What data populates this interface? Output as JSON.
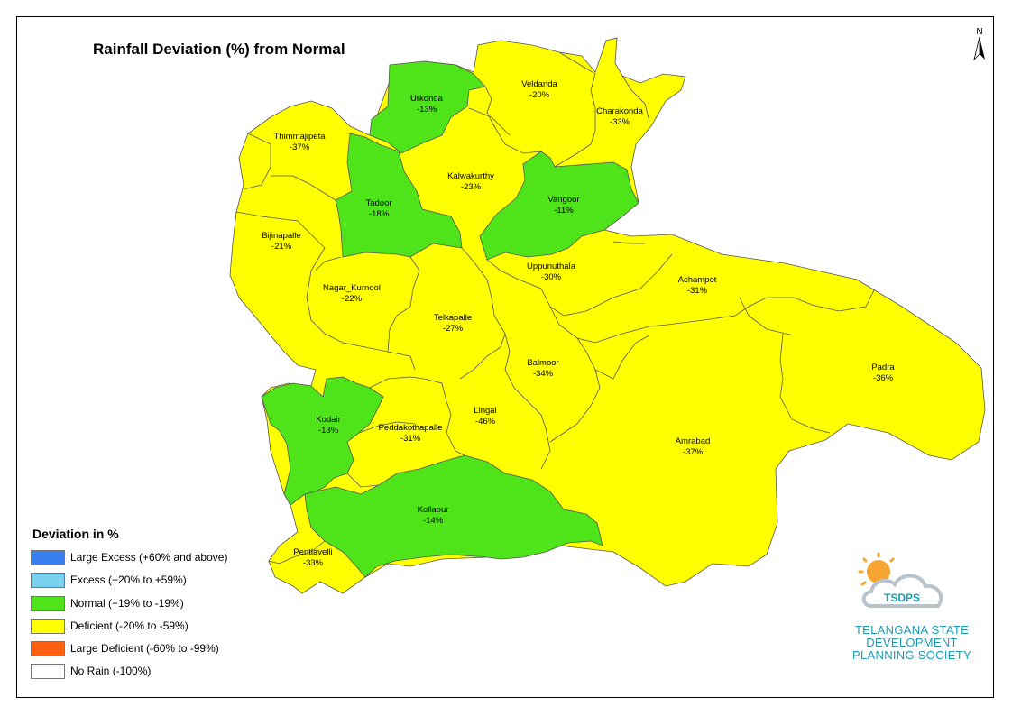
{
  "title": "Rainfall Deviation (%) from Normal",
  "north_arrow": "N",
  "legend": {
    "title": "Deviation in %",
    "items": [
      {
        "label": "Large Excess (+60% and above)",
        "color": "#3a7ff0"
      },
      {
        "label": "Excess (+20% to +59%)",
        "color": "#79d0ef"
      },
      {
        "label": "Normal (+19% to -19%)",
        "color": "#4fe31a"
      },
      {
        "label": "Deficient (-20% to -59%)",
        "color": "#ffff00"
      },
      {
        "label": "Large Deficient (-60% to -99%)",
        "color": "#ff5f12"
      },
      {
        "label": "No Rain (-100%)",
        "color": "#ffffff"
      }
    ]
  },
  "mandals": [
    {
      "name": "Urkonda",
      "value": "-13%",
      "category": "normal"
    },
    {
      "name": "Veldanda",
      "value": "-20%",
      "category": "deficient"
    },
    {
      "name": "Charakonda",
      "value": "-33%",
      "category": "deficient"
    },
    {
      "name": "Thimmajipeta",
      "value": "-37%",
      "category": "deficient"
    },
    {
      "name": "Kalwakurthy",
      "value": "-23%",
      "category": "deficient"
    },
    {
      "name": "Tadoor",
      "value": "-18%",
      "category": "normal"
    },
    {
      "name": "Vangoor",
      "value": "-11%",
      "category": "normal"
    },
    {
      "name": "Bijinapalle",
      "value": "-21%",
      "category": "deficient"
    },
    {
      "name": "Uppunuthala",
      "value": "-30%",
      "category": "deficient"
    },
    {
      "name": "Achampet",
      "value": "-31%",
      "category": "deficient"
    },
    {
      "name": "Nagar_Kurnool",
      "value": "-22%",
      "category": "deficient"
    },
    {
      "name": "Telkapalle",
      "value": "-27%",
      "category": "deficient"
    },
    {
      "name": "Balmoor",
      "value": "-34%",
      "category": "deficient"
    },
    {
      "name": "Padra",
      "value": "-36%",
      "category": "deficient"
    },
    {
      "name": "Lingal",
      "value": "-46%",
      "category": "deficient"
    },
    {
      "name": "Kodair",
      "value": "-13%",
      "category": "normal"
    },
    {
      "name": "Peddakothapalle",
      "value": "-31%",
      "category": "deficient"
    },
    {
      "name": "Amrabad",
      "value": "-37%",
      "category": "deficient"
    },
    {
      "name": "Kollapur",
      "value": "-14%",
      "category": "normal"
    },
    {
      "name": "Pentlavelli",
      "value": "-33%",
      "category": "deficient"
    }
  ],
  "logo": {
    "acronym": "TSDPS",
    "lines": [
      "TELANGANA STATE",
      "DEVELOPMENT",
      "PLANNING SOCIETY"
    ],
    "sun_color": "#f7a531",
    "cloud_color": "#b9c3cc",
    "brand_color": "#1c9bb4"
  }
}
